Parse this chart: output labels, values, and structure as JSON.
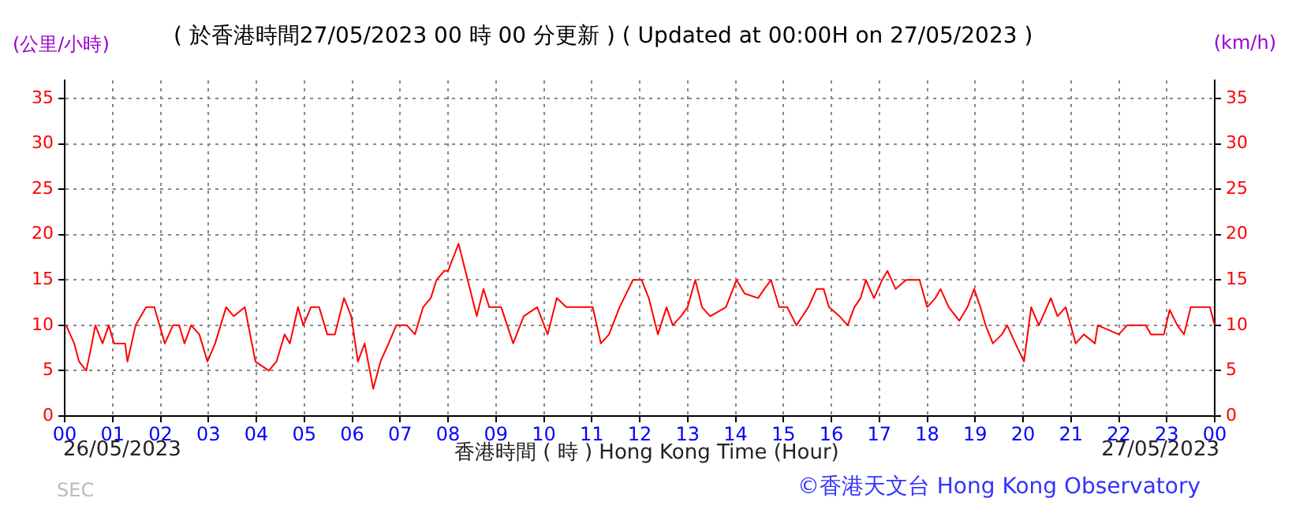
{
  "chart_data": {
    "type": "line",
    "title": "( 於香港時間27/05/2023 00 時 00 分更新 ) ( Updated at 00:00H on 27/05/2023 )",
    "ylabel": "(公里/小時)",
    "y2label": "(km/h)",
    "xlabel": "香港時間 ( 時 ) Hong Kong Time (Hour)",
    "annotations": [
      "26/05/2023",
      "27/05/2023",
      "©香港天文台 Hong Kong Observatory",
      "SEC"
    ],
    "x": [
      0.03,
      0.2,
      0.3,
      0.45,
      0.55,
      0.64,
      0.79,
      0.92,
      1.03,
      1.26,
      1.31,
      1.48,
      1.7,
      1.87,
      2.09,
      2.26,
      2.39,
      2.5,
      2.64,
      2.81,
      2.98,
      3.14,
      3.37,
      3.53,
      3.76,
      3.98,
      4.26,
      4.42,
      4.59,
      4.7,
      4.87,
      4.98,
      5.14,
      5.31,
      5.48,
      5.64,
      5.83,
      5.98,
      6.12,
      6.26,
      6.44,
      6.59,
      6.76,
      6.92,
      7.14,
      7.31,
      7.48,
      7.64,
      7.76,
      7.92,
      8.0,
      8.22,
      8.41,
      8.6,
      8.74,
      8.86,
      9.11,
      9.36,
      9.58,
      9.86,
      10.08,
      10.27,
      10.47,
      11.02,
      11.19,
      11.36,
      11.58,
      11.86,
      12.04,
      12.19,
      12.38,
      12.56,
      12.69,
      12.86,
      13.0,
      13.16,
      13.3,
      13.47,
      13.8,
      14.02,
      14.19,
      14.47,
      14.6,
      14.74,
      14.91,
      15.08,
      15.27,
      15.52,
      15.69,
      15.84,
      15.95,
      16.17,
      16.34,
      16.48,
      16.61,
      16.72,
      16.89,
      17.06,
      17.17,
      17.34,
      17.56,
      17.84,
      18.0,
      18.17,
      18.28,
      18.45,
      18.67,
      18.84,
      18.98,
      19.11,
      19.22,
      19.37,
      19.56,
      19.67,
      19.84,
      20.02,
      20.17,
      20.33,
      20.58,
      20.72,
      20.89,
      21.1,
      21.27,
      21.5,
      21.56,
      22.0,
      22.17,
      22.56,
      22.67,
      22.94,
      23.06,
      23.22,
      23.36,
      23.5,
      23.9,
      24.0
    ],
    "series": [
      {
        "color": "#ff0000",
        "values": [
          10,
          8,
          6,
          5,
          7.5,
          10,
          8,
          10,
          8,
          8,
          6,
          10,
          12,
          12,
          8,
          10,
          10,
          8,
          10,
          9,
          6,
          8,
          12,
          11,
          12,
          6,
          5,
          6,
          9,
          8,
          12,
          10,
          12,
          12,
          9,
          9,
          13,
          11,
          6,
          8,
          3,
          6,
          8,
          10,
          10,
          9,
          12,
          13,
          15,
          16,
          16,
          19,
          15,
          11,
          14,
          12,
          12,
          8,
          11,
          12,
          9,
          13,
          12,
          12,
          8,
          9,
          12,
          15,
          15,
          13,
          9,
          12,
          10,
          11,
          12,
          15,
          12,
          11,
          12,
          15,
          13.5,
          13,
          14,
          15,
          12,
          12,
          10,
          12,
          14,
          14,
          12,
          11,
          10,
          12,
          13,
          15,
          13,
          15,
          16,
          14,
          15,
          15,
          12,
          13,
          14,
          12,
          10.5,
          12,
          14,
          12,
          10,
          8,
          9,
          10,
          8,
          6,
          12,
          10,
          13,
          11,
          12,
          8,
          9,
          8,
          10,
          9,
          10,
          10,
          9,
          9,
          11.7,
          10,
          9,
          12,
          12,
          10
        ]
      }
    ],
    "xlim": [
      0,
      24
    ],
    "xticks": [
      {
        "value": 0,
        "label": "00"
      },
      {
        "value": 1,
        "label": "01"
      },
      {
        "value": 2,
        "label": "02"
      },
      {
        "value": 3,
        "label": "03"
      },
      {
        "value": 4,
        "label": "04"
      },
      {
        "value": 5,
        "label": "05"
      },
      {
        "value": 6,
        "label": "06"
      },
      {
        "value": 7,
        "label": "07"
      },
      {
        "value": 8,
        "label": "08"
      },
      {
        "value": 9,
        "label": "09"
      },
      {
        "value": 10,
        "label": "10"
      },
      {
        "value": 11,
        "label": "11"
      },
      {
        "value": 12,
        "label": "12"
      },
      {
        "value": 13,
        "label": "13"
      },
      {
        "value": 14,
        "label": "14"
      },
      {
        "value": 15,
        "label": "15"
      },
      {
        "value": 16,
        "label": "16"
      },
      {
        "value": 17,
        "label": "17"
      },
      {
        "value": 18,
        "label": "18"
      },
      {
        "value": 19,
        "label": "19"
      },
      {
        "value": 20,
        "label": "20"
      },
      {
        "value": 21,
        "label": "21"
      },
      {
        "value": 22,
        "label": "22"
      },
      {
        "value": 23,
        "label": "23"
      },
      {
        "value": 24,
        "label": "00"
      }
    ],
    "ylim": [
      0,
      37
    ],
    "yticks": [
      0,
      5,
      10,
      15,
      20,
      25,
      30,
      35
    ],
    "y2lim": [
      0,
      37
    ],
    "y2ticks": [
      0,
      5,
      10,
      15,
      20,
      25,
      30,
      35
    ],
    "grid": true,
    "legend": false,
    "marker": "none",
    "line_style": "solid"
  }
}
